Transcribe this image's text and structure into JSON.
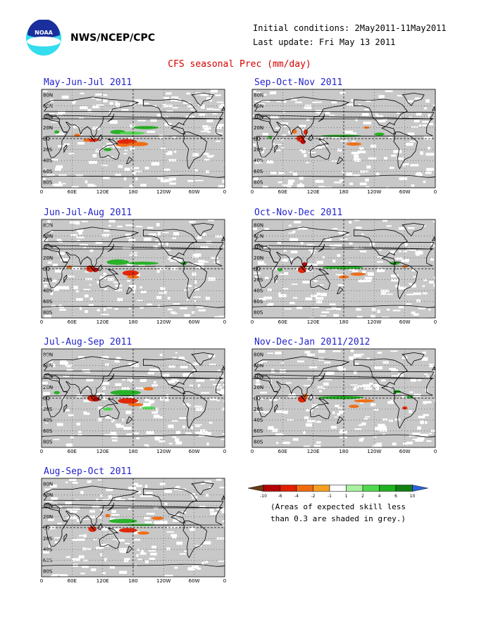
{
  "header": {
    "agency": "NWS/NCEP/CPC",
    "initial_conditions": "Initial conditions: 2May2011-11May2011",
    "last_update": "Last update: Fri May 13 2011",
    "logo_text": "NOAA"
  },
  "title": "CFS seasonal Prec (mm/day)",
  "axes": {
    "lat_labels": [
      "80N",
      "60N",
      "40N",
      "20N",
      "EQ",
      "20S",
      "40S",
      "60S",
      "80S"
    ],
    "lon_labels": [
      "0",
      "60E",
      "120E",
      "180",
      "120W",
      "60W",
      "0"
    ]
  },
  "panels": [
    {
      "id": "mjj",
      "title": "May-Jun-Jul 2011"
    },
    {
      "id": "jja",
      "title": "Jun-Jul-Aug 2011"
    },
    {
      "id": "jas",
      "title": "Jul-Aug-Sep 2011"
    },
    {
      "id": "aso",
      "title": "Aug-Sep-Oct 2011"
    },
    {
      "id": "son",
      "title": "Sep-Oct-Nov 2011"
    },
    {
      "id": "ond",
      "title": "Oct-Nov-Dec 2011"
    },
    {
      "id": "ndj",
      "title": "Nov-Dec-Jan 2011/2012"
    }
  ],
  "legend": {
    "ticks": [
      "-10",
      "-6",
      "-4",
      "-2",
      "-1",
      "1",
      "2",
      "4",
      "6",
      "10"
    ],
    "colors": [
      "#6b3b12",
      "#b40000",
      "#e02000",
      "#f06a10",
      "#f5a020",
      "#ffffff",
      "#a8f0a0",
      "#50d850",
      "#20b020",
      "#108010",
      "#2a64e0"
    ],
    "note_line1": "(Areas of expected skill less",
    "note_line2": "than 0.3 are shaded in grey.)"
  },
  "colors": {
    "ocean_grey": "#c8c8c8",
    "coast": "#000000",
    "title_blue": "#2222cc",
    "title_red": "#d40000"
  }
}
